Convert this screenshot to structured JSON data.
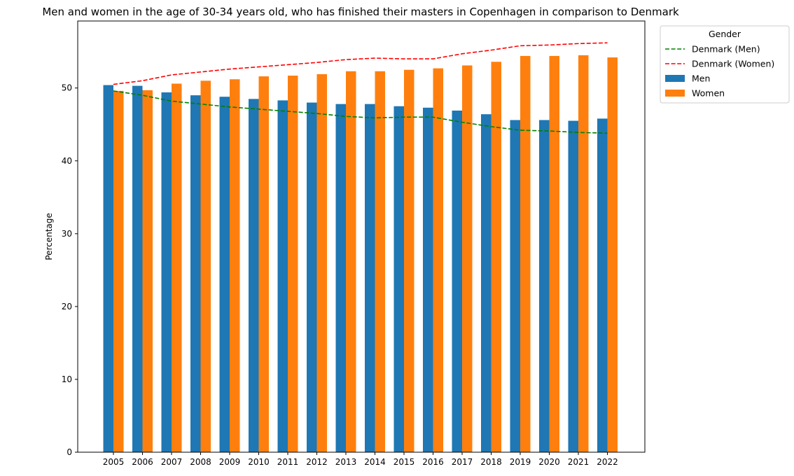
{
  "chart_data": {
    "type": "bar",
    "title": "Men and women in the age of 30-34 years old, who has finished their masters in Copenhagen in comparison to Denmark",
    "xlabel": "",
    "ylabel": "Percentage",
    "categories": [
      "2005",
      "2006",
      "2007",
      "2008",
      "2009",
      "2010",
      "2011",
      "2012",
      "2013",
      "2014",
      "2015",
      "2016",
      "2017",
      "2018",
      "2019",
      "2020",
      "2021",
      "2022"
    ],
    "ylim": [
      0,
      59.2
    ],
    "yticks": [
      0,
      10,
      20,
      30,
      40,
      50
    ],
    "grid": false,
    "legend": {
      "title": "Gender",
      "placement": "outside-top-right"
    },
    "bar_series": [
      {
        "name": "Men",
        "color": "#1f77b4",
        "values": [
          50.4,
          50.3,
          49.4,
          49.0,
          48.8,
          48.5,
          48.3,
          48.0,
          47.8,
          47.8,
          47.5,
          47.3,
          46.9,
          46.4,
          45.6,
          45.6,
          45.5,
          45.8
        ]
      },
      {
        "name": "Women",
        "color": "#ff7f0e",
        "values": [
          49.6,
          49.7,
          50.6,
          51.0,
          51.2,
          51.6,
          51.7,
          51.9,
          52.3,
          52.3,
          52.5,
          52.7,
          53.1,
          53.6,
          54.4,
          54.4,
          54.5,
          54.2
        ]
      }
    ],
    "line_series": [
      {
        "name": "Denmark (Men)",
        "color": "#008000",
        "dash": "dashed",
        "values": [
          49.6,
          49.0,
          48.2,
          47.8,
          47.4,
          47.1,
          46.8,
          46.5,
          46.1,
          45.9,
          46.0,
          46.0,
          45.3,
          44.7,
          44.2,
          44.1,
          43.9,
          43.8
        ]
      },
      {
        "name": "Denmark (Women)",
        "color": "#ff0000",
        "dash": "dashed",
        "values": [
          50.5,
          51.0,
          51.8,
          52.2,
          52.6,
          52.9,
          53.2,
          53.5,
          53.9,
          54.1,
          54.0,
          54.0,
          54.7,
          55.2,
          55.8,
          55.9,
          56.1,
          56.2
        ]
      }
    ],
    "legend_order": [
      "Denmark (Men)",
      "Denmark (Women)",
      "Men",
      "Women"
    ]
  }
}
